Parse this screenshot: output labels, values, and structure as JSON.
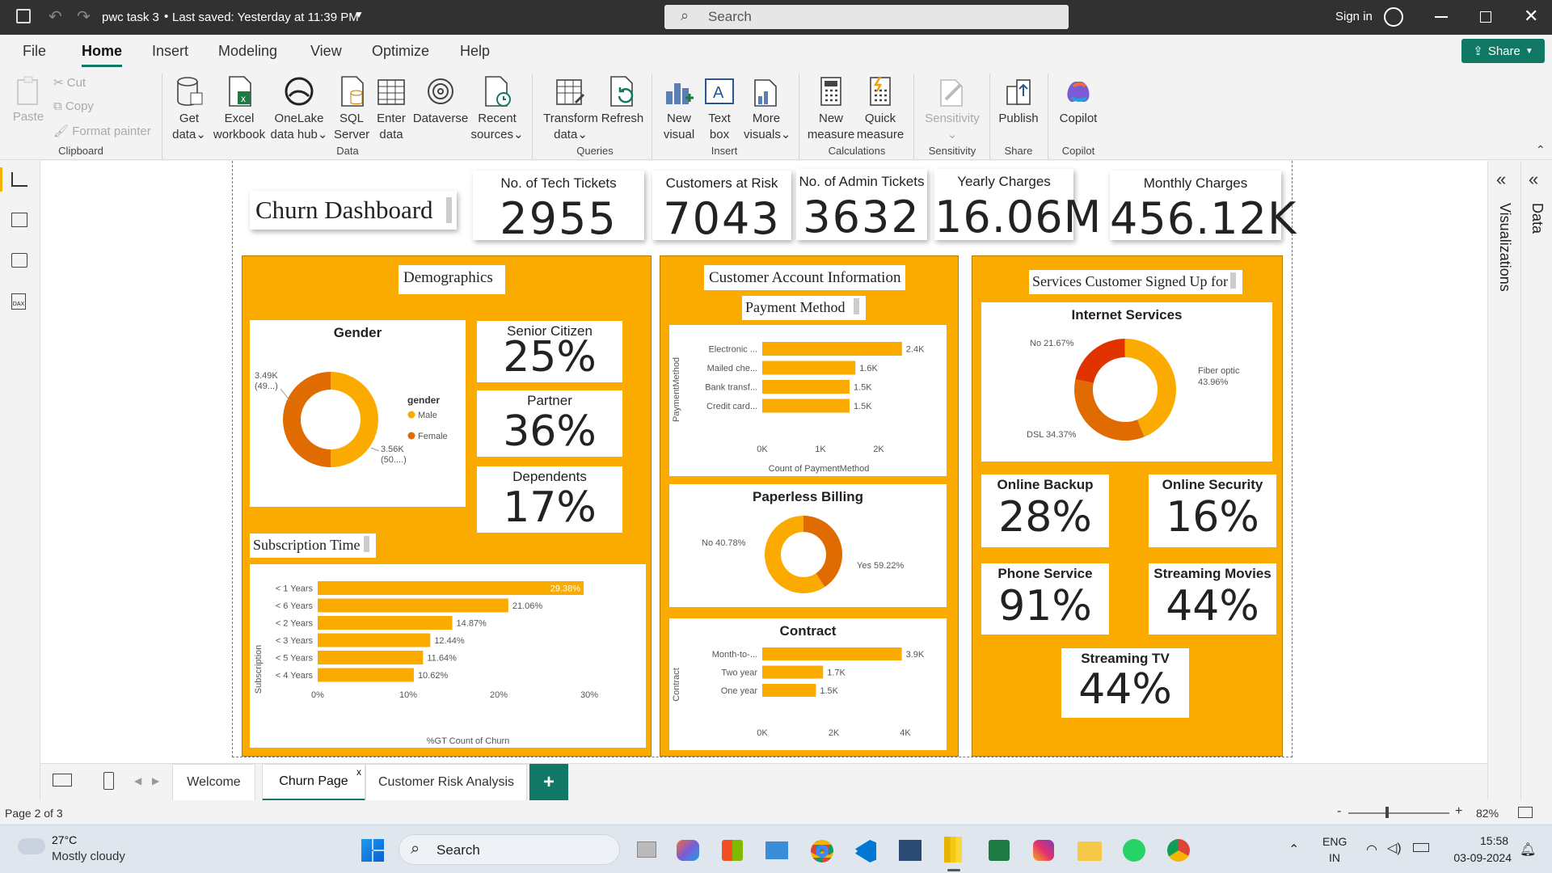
{
  "window": {
    "title": "pwc task 3",
    "saved": "Last saved: Yesterday at 11:39 PM",
    "search": "Search",
    "signin": "Sign in"
  },
  "menu": {
    "tabs": [
      "File",
      "Home",
      "Insert",
      "Modeling",
      "View",
      "Optimize",
      "Help"
    ],
    "share": "Share"
  },
  "ribbon": {
    "clipboard": {
      "paste": "Paste",
      "cut": "Cut",
      "copy": "Copy",
      "format": "Format painter",
      "group": "Clipboard"
    },
    "data": {
      "get": "Get",
      "get2": "data",
      "excel": "Excel",
      "excel2": "workbook",
      "onelake": "OneLake",
      "onelake2": "data hub",
      "sql": "SQL",
      "sql2": "Server",
      "enter": "Enter",
      "enter2": "data",
      "dataverse": "Dataverse",
      "recent": "Recent",
      "recent2": "sources",
      "group": "Data"
    },
    "queries": {
      "transform": "Transform",
      "transform2": "data",
      "refresh": "Refresh",
      "group": "Queries"
    },
    "insert": {
      "newvisual": "New",
      "newvisual2": "visual",
      "textbox": "Text",
      "textbox2": "box",
      "more": "More",
      "more2": "visuals",
      "group": "Insert"
    },
    "calc": {
      "newm": "New",
      "newm2": "measure",
      "quick": "Quick",
      "quick2": "measure",
      "group": "Calculations"
    },
    "sens": {
      "label": "Sensitivity",
      "group": "Sensitivity"
    },
    "share": {
      "publish": "Publish",
      "group": "Share"
    },
    "copilot": {
      "label": "Copilot",
      "group": "Copilot"
    }
  },
  "dashboard": {
    "title": "Churn Dashboard",
    "kpis": [
      {
        "label": "No. of Tech Tickets",
        "value": "2955"
      },
      {
        "label": "Customers at Risk",
        "value": "7043"
      },
      {
        "label": "No. of Admin Tickets",
        "value": "3632"
      },
      {
        "label": "Yearly Charges",
        "value": "16.06M"
      },
      {
        "label": "Monthly Charges",
        "value": "456.12K"
      }
    ],
    "demographics": {
      "title": "Demographics",
      "gender": {
        "title": "Gender",
        "legend_title": "gender",
        "legend": [
          "Male",
          "Female"
        ],
        "label_a": "3.49K",
        "label_a2": "(49...)",
        "label_b": "3.56K",
        "label_b2": "(50....)",
        "values": [
          3.49,
          3.56
        ]
      },
      "senior": {
        "label": "Senior Citizen",
        "value": "25%"
      },
      "partner": {
        "label": "Partner",
        "value": "36%"
      },
      "dependents": {
        "label": "Dependents",
        "value": "17%"
      },
      "subscription": {
        "title": "Subscription Time",
        "ylabel": "Subscription",
        "xlabel": "%GT Count of Churn"
      }
    },
    "account": {
      "title": "Customer Account Information",
      "payment_title": "Payment Method",
      "payment": {
        "ylabel": "PaymentMethod",
        "xlabel": "Count of PaymentMethod"
      },
      "paperless": {
        "title": "Paperless Billing",
        "no": "No 40.78%",
        "yes": "Yes 59.22%"
      },
      "contract": {
        "title": "Contract",
        "ylabel": "Contract"
      }
    },
    "services": {
      "title": "Services Customer Signed Up for",
      "internet": {
        "title": "Internet Services",
        "no": "No 21.67%",
        "fiber": "Fiber optic",
        "fiber2": "43.96%",
        "dsl": "DSL 34.37%"
      },
      "backup": {
        "label": "Online Backup",
        "value": "28%"
      },
      "security": {
        "label": "Online Security",
        "value": "16%"
      },
      "phone": {
        "label": "Phone Service",
        "value": "91%"
      },
      "movies": {
        "label": "Streaming Movies",
        "value": "44%"
      },
      "tv": {
        "label": "Streaming TV",
        "value": "44%"
      }
    }
  },
  "chart_data": [
    {
      "type": "bar",
      "title": "",
      "categories": [
        "< 1 Years",
        "< 6 Years",
        "< 2 Years",
        "< 3 Years",
        "< 5 Years",
        "< 4 Years"
      ],
      "values": [
        29.38,
        21.06,
        14.87,
        12.44,
        11.64,
        10.62
      ],
      "labels": [
        "29.38%",
        "21.06%",
        "14.87%",
        "12.44%",
        "11.64%",
        "10.62%"
      ],
      "xticks": [
        "0%",
        "10%",
        "20%",
        "30%"
      ],
      "xlim": [
        0,
        30
      ],
      "ylabel": "Subscription",
      "xlabel": "%GT Count of Churn"
    },
    {
      "type": "bar",
      "title": "",
      "categories": [
        "Electronic ...",
        "Mailed che...",
        "Bank transf...",
        "Credit card..."
      ],
      "values": [
        2.4,
        1.6,
        1.5,
        1.5
      ],
      "labels": [
        "2.4K",
        "1.6K",
        "1.5K",
        "1.5K"
      ],
      "xticks": [
        "0K",
        "1K",
        "2K"
      ],
      "xlim": [
        0,
        2.5
      ],
      "ylabel": "PaymentMethod",
      "xlabel": "Count of PaymentMethod"
    },
    {
      "type": "bar",
      "title": "Contract",
      "categories": [
        "Month-to-...",
        "Two year",
        "One year"
      ],
      "values": [
        3.9,
        1.7,
        1.5
      ],
      "labels": [
        "3.9K",
        "1.7K",
        "1.5K"
      ],
      "xticks": [
        "0K",
        "2K",
        "4K"
      ],
      "xlim": [
        0,
        4
      ],
      "ylabel": "Contract"
    },
    {
      "type": "pie",
      "title": "Paperless Billing",
      "series": [
        {
          "name": "No",
          "value": 40.78
        },
        {
          "name": "Yes",
          "value": 59.22
        }
      ]
    },
    {
      "type": "pie",
      "title": "Internet Services",
      "series": [
        {
          "name": "No",
          "value": 21.67
        },
        {
          "name": "Fiber optic",
          "value": 43.96
        },
        {
          "name": "DSL",
          "value": 34.37
        }
      ]
    },
    {
      "type": "pie",
      "title": "Gender",
      "series": [
        {
          "name": "Male",
          "value": 3.49
        },
        {
          "name": "Female",
          "value": 3.56
        }
      ]
    }
  ],
  "colors": {
    "panel": "#fbab00",
    "bar": "#fbab00",
    "dark": "#e06b00",
    "red": "#e03300",
    "accent": "#117865"
  },
  "pages": {
    "tabs": [
      "Welcome",
      "Churn Page",
      "Customer Risk Analysis"
    ],
    "add": "+",
    "status": "Page 2 of 3",
    "zoom": "82%"
  },
  "rightpane": {
    "viz": "Visualizations",
    "data": "Data"
  },
  "taskbar": {
    "temp": "27°C",
    "weather": "Mostly cloudy",
    "search": "Search",
    "lang": "ENG",
    "lang2": "IN",
    "time": "15:58",
    "date": "03-09-2024"
  }
}
